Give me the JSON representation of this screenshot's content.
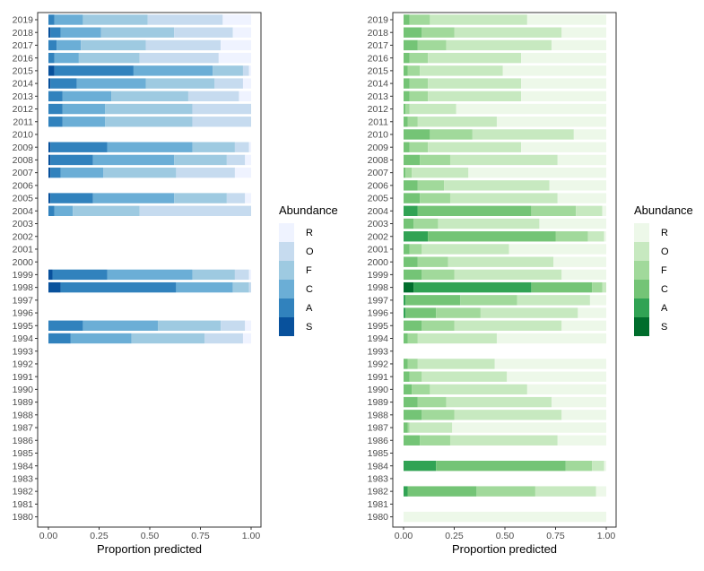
{
  "chart_data": [
    {
      "type": "bar",
      "orientation": "horizontal",
      "stacked": true,
      "categories": [
        "1980",
        "1981",
        "1982",
        "1983",
        "1984",
        "1985",
        "1986",
        "1987",
        "1988",
        "1989",
        "1990",
        "1991",
        "1992",
        "1993",
        "1994",
        "1995",
        "1996",
        "1997",
        "1998",
        "1999",
        "2000",
        "2001",
        "2002",
        "2003",
        "2004",
        "2005",
        "2006",
        "2007",
        "2008",
        "2009",
        "2010",
        "2011",
        "2012",
        "2013",
        "2014",
        "2015",
        "2016",
        "2017",
        "2018",
        "2019"
      ],
      "xlabel": "Proportion predicted",
      "xlim": [
        0,
        1
      ],
      "xticks": [
        "0.00",
        "0.25",
        "0.50",
        "0.75",
        "1.00"
      ],
      "legend_title": "Abundance",
      "legend_position": "right",
      "grid": false,
      "series_names": [
        "S",
        "A",
        "C",
        "F",
        "O",
        "R"
      ],
      "colors": [
        "#08519c",
        "#3182bd",
        "#6baed6",
        "#9ecae1",
        "#c6dbef",
        "#eff3ff"
      ],
      "bars": {
        "1994": [
          0,
          0.11,
          0.3,
          0.36,
          0.19,
          0.04
        ],
        "1995": [
          0,
          0.17,
          0.37,
          0.31,
          0.12,
          0.03
        ],
        "1998": [
          0.06,
          0.57,
          0.28,
          0.08,
          0.01,
          0
        ],
        "1999": [
          0.02,
          0.27,
          0.42,
          0.21,
          0.07,
          0.01
        ],
        "2004": [
          0,
          0.03,
          0.09,
          0.33,
          0.55,
          0
        ],
        "2005": [
          0.01,
          0.21,
          0.4,
          0.26,
          0.09,
          0.03
        ],
        "2007": [
          0.01,
          0.05,
          0.21,
          0.36,
          0.29,
          0.08
        ],
        "2008": [
          0.01,
          0.21,
          0.4,
          0.26,
          0.09,
          0.03
        ],
        "2009": [
          0.01,
          0.28,
          0.42,
          0.21,
          0.07,
          0.01
        ],
        "2011": [
          0,
          0.07,
          0.21,
          0.43,
          0.29,
          0
        ],
        "2012": [
          0,
          0.07,
          0.21,
          0.43,
          0.29,
          0
        ],
        "2013": [
          0,
          0.07,
          0.24,
          0.38,
          0.25,
          0.06
        ],
        "2014": [
          0.01,
          0.13,
          0.34,
          0.34,
          0.14,
          0.04
        ],
        "2015": [
          0.03,
          0.39,
          0.39,
          0.15,
          0.03,
          0.01
        ],
        "2016": [
          0,
          0.03,
          0.12,
          0.3,
          0.39,
          0.16
        ],
        "2017": [
          0,
          0.04,
          0.12,
          0.32,
          0.37,
          0.15
        ],
        "2018": [
          0.01,
          0.05,
          0.2,
          0.36,
          0.29,
          0.09
        ],
        "2019": [
          0,
          0.03,
          0.14,
          0.32,
          0.37,
          0.14
        ]
      }
    },
    {
      "type": "bar",
      "orientation": "horizontal",
      "stacked": true,
      "categories": [
        "1980",
        "1981",
        "1982",
        "1983",
        "1984",
        "1985",
        "1986",
        "1987",
        "1988",
        "1989",
        "1990",
        "1991",
        "1992",
        "1993",
        "1994",
        "1995",
        "1996",
        "1997",
        "1998",
        "1999",
        "2000",
        "2001",
        "2002",
        "2003",
        "2004",
        "2005",
        "2006",
        "2007",
        "2008",
        "2009",
        "2010",
        "2011",
        "2012",
        "2013",
        "2014",
        "2015",
        "2016",
        "2017",
        "2018",
        "2019"
      ],
      "xlabel": "Proportion predicted",
      "xlim": [
        0,
        1
      ],
      "xticks": [
        "0.00",
        "0.25",
        "0.50",
        "0.75",
        "1.00"
      ],
      "legend_title": "Abundance",
      "legend_position": "right",
      "grid": false,
      "series_names": [
        "S",
        "A",
        "C",
        "F",
        "O",
        "R"
      ],
      "colors": [
        "#006d2c",
        "#31a354",
        "#74c476",
        "#a1d99b",
        "#c7e9c0",
        "#edf8e9"
      ],
      "bars": {
        "1980": [
          0,
          0,
          0,
          0,
          0,
          1.0
        ],
        "1982": [
          0,
          0.02,
          0.34,
          0.29,
          0.3,
          0.05
        ],
        "1984": [
          0,
          0.16,
          0.64,
          0.13,
          0.06,
          0.01
        ],
        "1986": [
          0,
          0,
          0.08,
          0.15,
          0.53,
          0.24
        ],
        "1987": [
          0,
          0,
          0.02,
          0.01,
          0.21,
          0.76
        ],
        "1988": [
          0,
          0,
          0.09,
          0.16,
          0.53,
          0.22
        ],
        "1989": [
          0,
          0,
          0.07,
          0.14,
          0.52,
          0.27
        ],
        "1990": [
          0,
          0,
          0.04,
          0.09,
          0.48,
          0.39
        ],
        "1991": [
          0,
          0,
          0.03,
          0.06,
          0.42,
          0.49
        ],
        "1992": [
          0,
          0,
          0.02,
          0.05,
          0.38,
          0.55
        ],
        "1994": [
          0,
          0,
          0.02,
          0.05,
          0.39,
          0.54
        ],
        "1995": [
          0,
          0,
          0.09,
          0.16,
          0.53,
          0.22
        ],
        "1996": [
          0,
          0.01,
          0.15,
          0.22,
          0.48,
          0.14
        ],
        "1997": [
          0,
          0.01,
          0.27,
          0.28,
          0.36,
          0.08
        ],
        "1998": [
          0.05,
          0.58,
          0.3,
          0.05,
          0.02,
          0
        ],
        "1999": [
          0,
          0,
          0.09,
          0.16,
          0.53,
          0.22
        ],
        "2000": [
          0,
          0,
          0.07,
          0.15,
          0.52,
          0.26
        ],
        "2001": [
          0,
          0,
          0.03,
          0.06,
          0.43,
          0.48
        ],
        "2002": [
          0,
          0.12,
          0.63,
          0.16,
          0.08,
          0.01
        ],
        "2003": [
          0,
          0,
          0.05,
          0.12,
          0.5,
          0.33
        ],
        "2004": [
          0,
          0.07,
          0.56,
          0.22,
          0.13,
          0.02
        ],
        "2005": [
          0,
          0,
          0.08,
          0.15,
          0.53,
          0.24
        ],
        "2006": [
          0,
          0,
          0.07,
          0.13,
          0.52,
          0.28
        ],
        "2007": [
          0,
          0,
          0.01,
          0.03,
          0.28,
          0.68
        ],
        "2008": [
          0,
          0,
          0.08,
          0.15,
          0.53,
          0.24
        ],
        "2009": [
          0,
          0,
          0.03,
          0.09,
          0.46,
          0.42
        ],
        "2010": [
          0,
          0,
          0.13,
          0.21,
          0.5,
          0.16
        ],
        "2011": [
          0,
          0,
          0.02,
          0.05,
          0.39,
          0.54
        ],
        "2012": [
          0,
          0,
          0.01,
          0.02,
          0.23,
          0.74
        ],
        "2013": [
          0,
          0,
          0.03,
          0.09,
          0.46,
          0.42
        ],
        "2014": [
          0,
          0,
          0.03,
          0.09,
          0.46,
          0.42
        ],
        "2015": [
          0,
          0,
          0.02,
          0.06,
          0.41,
          0.51
        ],
        "2016": [
          0,
          0,
          0.03,
          0.09,
          0.46,
          0.42
        ],
        "2017": [
          0,
          0,
          0.07,
          0.14,
          0.52,
          0.27
        ],
        "2018": [
          0,
          0,
          0.09,
          0.16,
          0.53,
          0.22
        ],
        "2019": [
          0,
          0,
          0.03,
          0.1,
          0.48,
          0.39
        ]
      }
    }
  ]
}
